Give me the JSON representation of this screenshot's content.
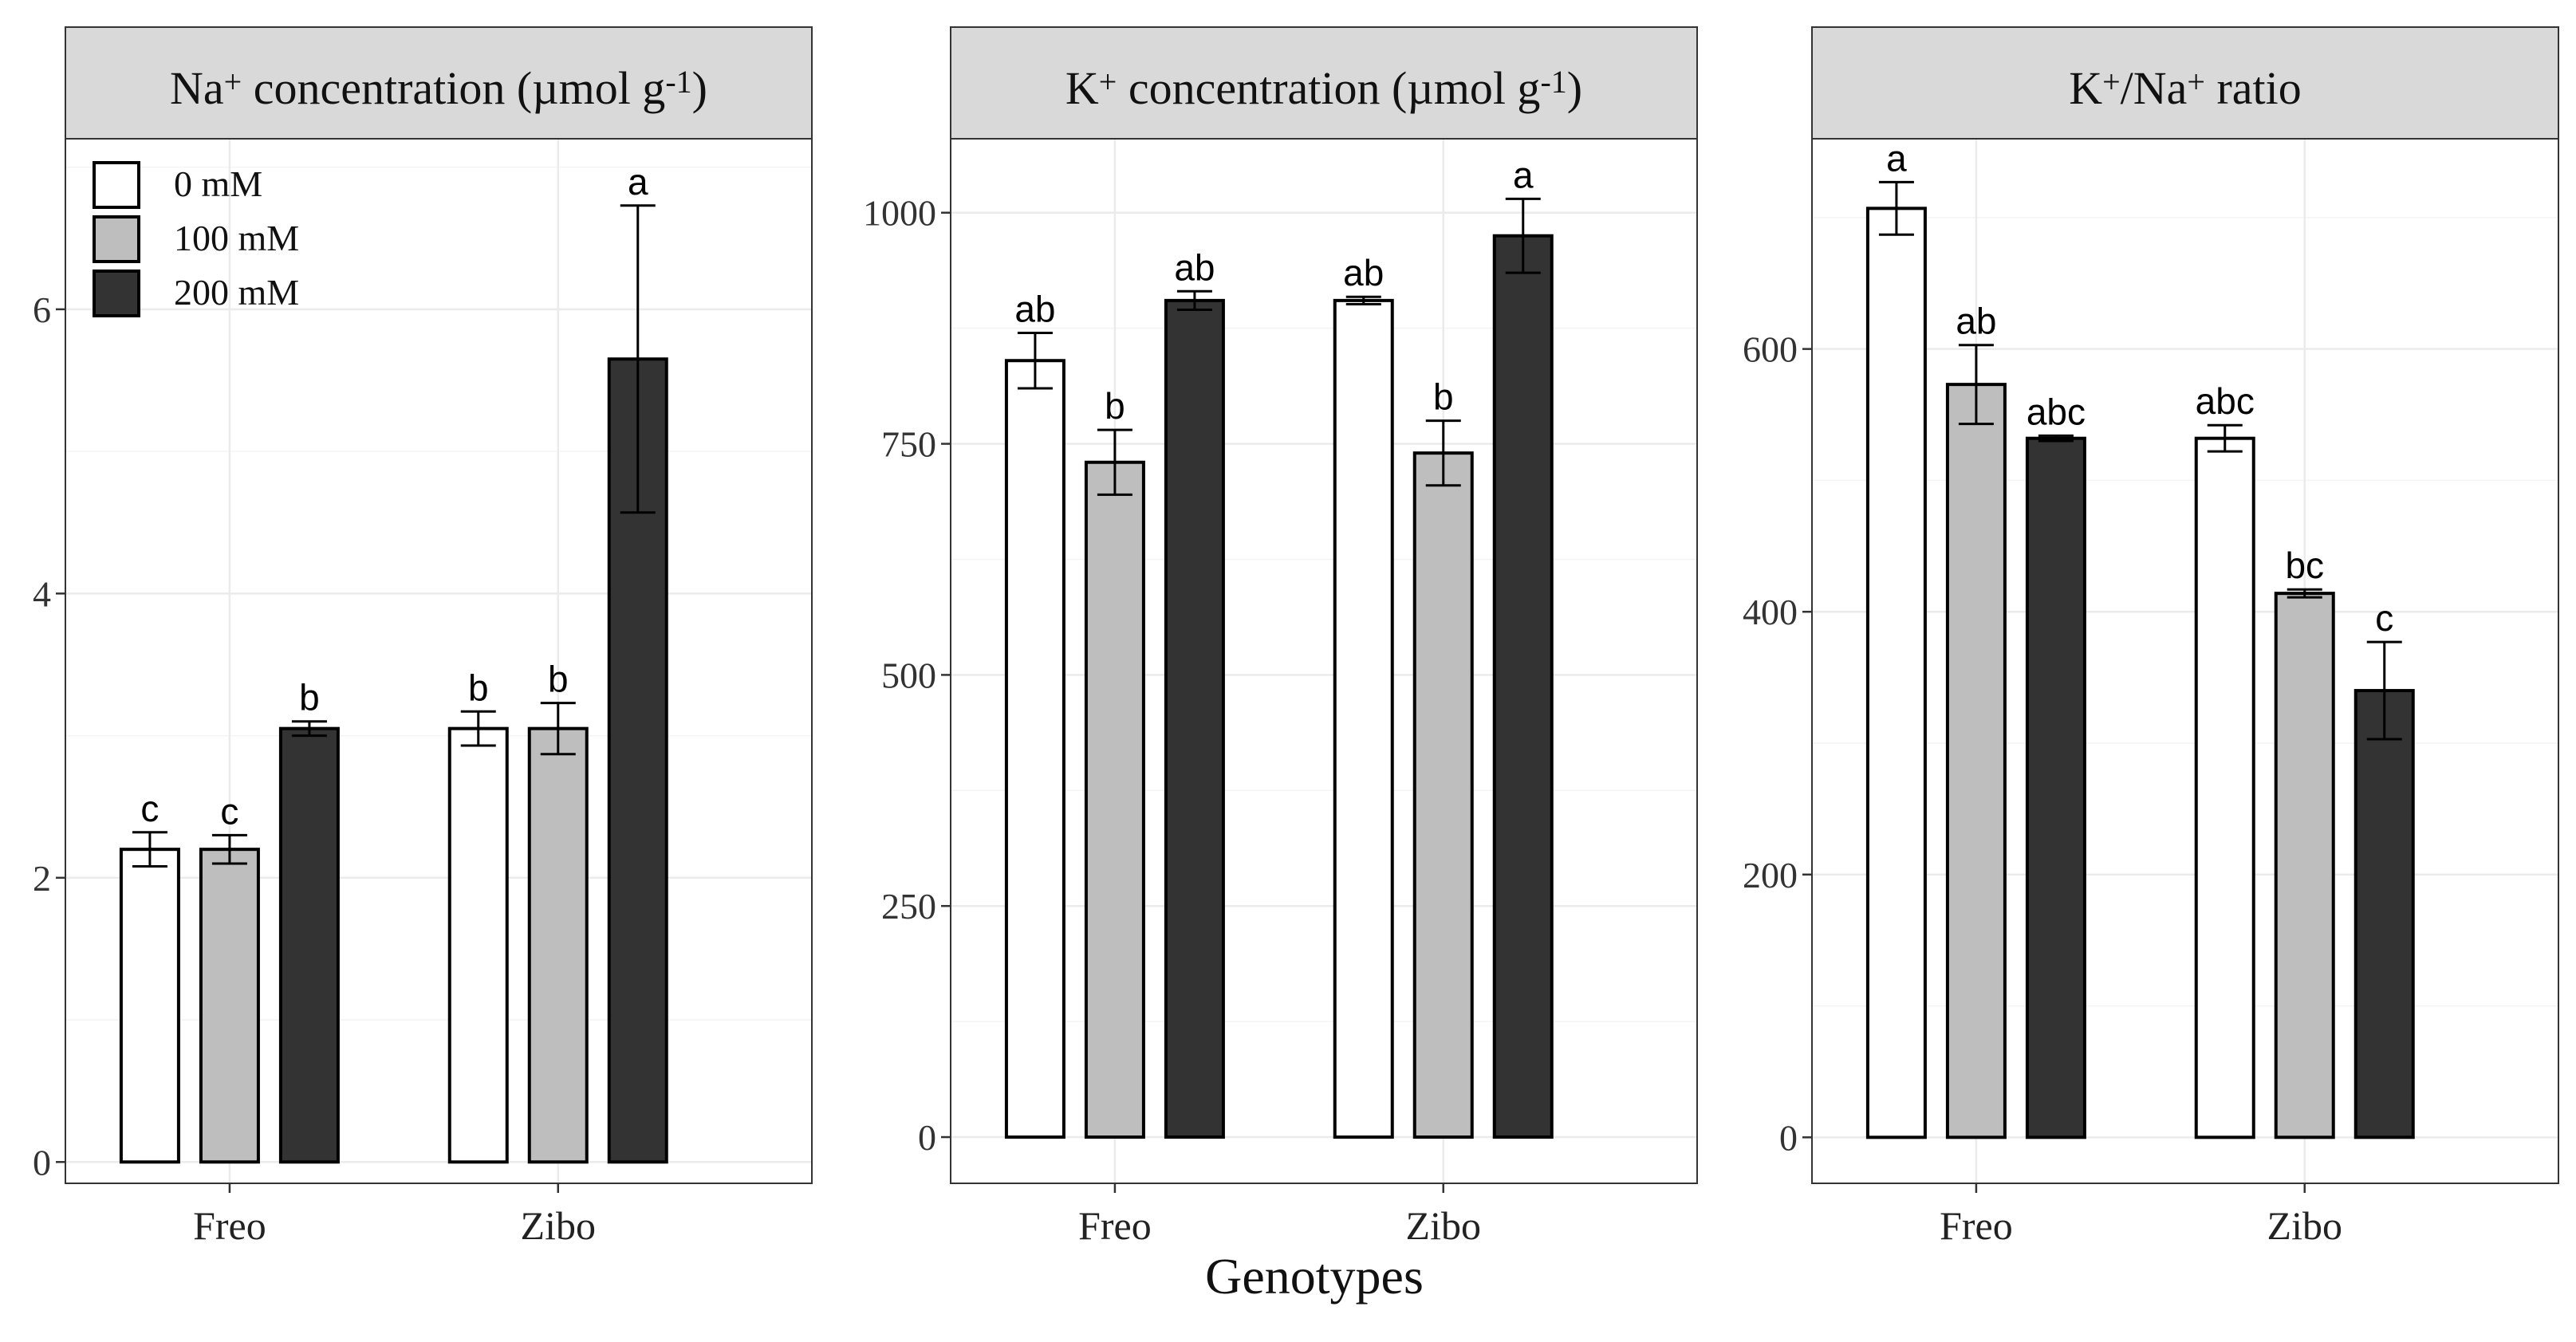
{
  "figure": {
    "x_title": "Genotypes",
    "legend": [
      {
        "label": "0 mM",
        "color": "#ffffff"
      },
      {
        "label": "100 mM",
        "color": "#bebebe"
      },
      {
        "label": "200 mM",
        "color": "#333333"
      }
    ]
  },
  "chart_data": [
    {
      "type": "bar",
      "title": "Na⁺ concentration (µmol g⁻¹)",
      "title_parts": [
        "Na",
        "+",
        " concentration (µmol g",
        "-1",
        ")"
      ],
      "categories": [
        "Freo",
        "Zibo"
      ],
      "ylim": [
        -0.15,
        7.2
      ],
      "yticks": [
        0,
        2,
        4,
        6
      ],
      "ytick_labels": [
        "0",
        "2",
        "4",
        "6"
      ],
      "grid": true,
      "legend": true,
      "series": [
        {
          "name": "0 mM",
          "values": [
            2.2,
            3.05
          ],
          "errors": [
            0.12,
            0.12
          ],
          "letters": [
            "c",
            "b"
          ]
        },
        {
          "name": "100 mM",
          "values": [
            2.2,
            3.05
          ],
          "errors": [
            0.1,
            0.18
          ],
          "letters": [
            "c",
            "b"
          ]
        },
        {
          "name": "200 mM",
          "values": [
            3.05,
            5.65
          ],
          "errors": [
            0.05,
            1.08
          ],
          "letters": [
            "b",
            "a"
          ]
        }
      ]
    },
    {
      "type": "bar",
      "title": "K⁺ concentration (µmol g⁻¹)",
      "title_parts": [
        "K",
        "+",
        " concentration (µmol g",
        "-1",
        ")"
      ],
      "categories": [
        "Freo",
        "Zibo"
      ],
      "ylim": [
        -50,
        1080
      ],
      "yticks": [
        0,
        250,
        500,
        750,
        1000
      ],
      "ytick_labels": [
        "0",
        "250",
        "500",
        "750",
        "1000"
      ],
      "grid": true,
      "legend": false,
      "series": [
        {
          "name": "0 mM",
          "values": [
            840,
            905
          ],
          "errors": [
            30,
            4
          ],
          "letters": [
            "ab",
            "ab"
          ]
        },
        {
          "name": "100 mM",
          "values": [
            730,
            740
          ],
          "errors": [
            35,
            35
          ],
          "letters": [
            "b",
            "b"
          ]
        },
        {
          "name": "200 mM",
          "values": [
            905,
            975
          ],
          "errors": [
            10,
            40
          ],
          "letters": [
            "ab",
            "a"
          ]
        }
      ]
    },
    {
      "type": "bar",
      "title": "K⁺/Na⁺ ratio",
      "title_parts": [
        "K",
        "+",
        "/Na",
        "+",
        " ratio"
      ],
      "categories": [
        "Freo",
        "Zibo"
      ],
      "ylim": [
        -35,
        760
      ],
      "yticks": [
        0,
        200,
        400,
        600
      ],
      "ytick_labels": [
        "0",
        "200",
        "400",
        "600"
      ],
      "grid": true,
      "legend": false,
      "series": [
        {
          "name": "0 mM",
          "values": [
            707,
            532
          ],
          "errors": [
            20,
            10
          ],
          "letters": [
            "a",
            "abc"
          ]
        },
        {
          "name": "100 mM",
          "values": [
            573,
            414
          ],
          "errors": [
            30,
            3
          ],
          "letters": [
            "ab",
            "bc"
          ]
        },
        {
          "name": "200 mM",
          "values": [
            532,
            340
          ],
          "errors": [
            2,
            37
          ],
          "letters": [
            "abc",
            "c"
          ]
        }
      ]
    }
  ]
}
